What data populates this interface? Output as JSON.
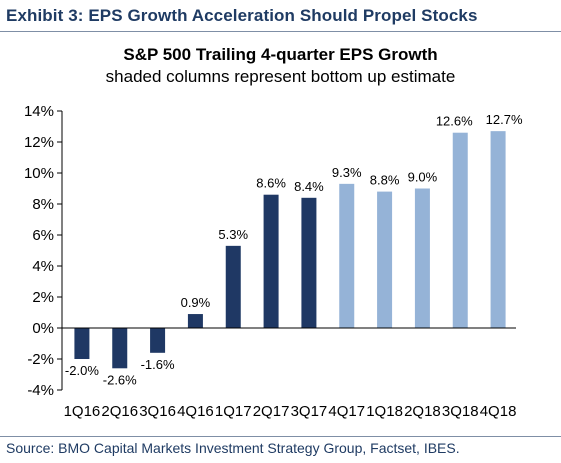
{
  "header": {
    "exhibit": "Exhibit 3: EPS Growth Acceleration Should Propel Stocks"
  },
  "footer": {
    "source": "Source: BMO Capital Markets Investment Strategy Group, Factset, IBES."
  },
  "colors": {
    "actual": "#1f3864",
    "estimate": "#95b3d7",
    "header_text": "#1f3b63"
  },
  "chart_data": {
    "type": "bar",
    "title": "S&P 500 Trailing 4-quarter EPS Growth",
    "subtitle": "shaded columns represent bottom up estimate",
    "categories": [
      "1Q16",
      "2Q16",
      "3Q16",
      "4Q16",
      "1Q17",
      "2Q17",
      "3Q17",
      "4Q17",
      "1Q18",
      "2Q18",
      "3Q18",
      "4Q18"
    ],
    "values": [
      -2.0,
      -2.6,
      -1.6,
      0.9,
      5.3,
      8.6,
      8.4,
      9.3,
      8.8,
      9.0,
      12.6,
      12.7
    ],
    "labels": [
      "-2.0%",
      "-2.6%",
      "-1.6%",
      "0.9%",
      "5.3%",
      "8.6%",
      "8.4%",
      "9.3%",
      "8.8%",
      "9.0%",
      "12.6%",
      "12.7%"
    ],
    "estimate": [
      false,
      false,
      false,
      false,
      false,
      false,
      false,
      true,
      true,
      true,
      true,
      true
    ],
    "ylim": [
      -4,
      14
    ],
    "yticks": [
      -4,
      -2,
      0,
      2,
      4,
      6,
      8,
      10,
      12,
      14
    ],
    "ytick_labels": [
      "-4%",
      "-2%",
      "0%",
      "2%",
      "4%",
      "6%",
      "8%",
      "10%",
      "12%",
      "14%"
    ],
    "grid": false,
    "legend": "none",
    "xlabel": "",
    "ylabel": ""
  }
}
